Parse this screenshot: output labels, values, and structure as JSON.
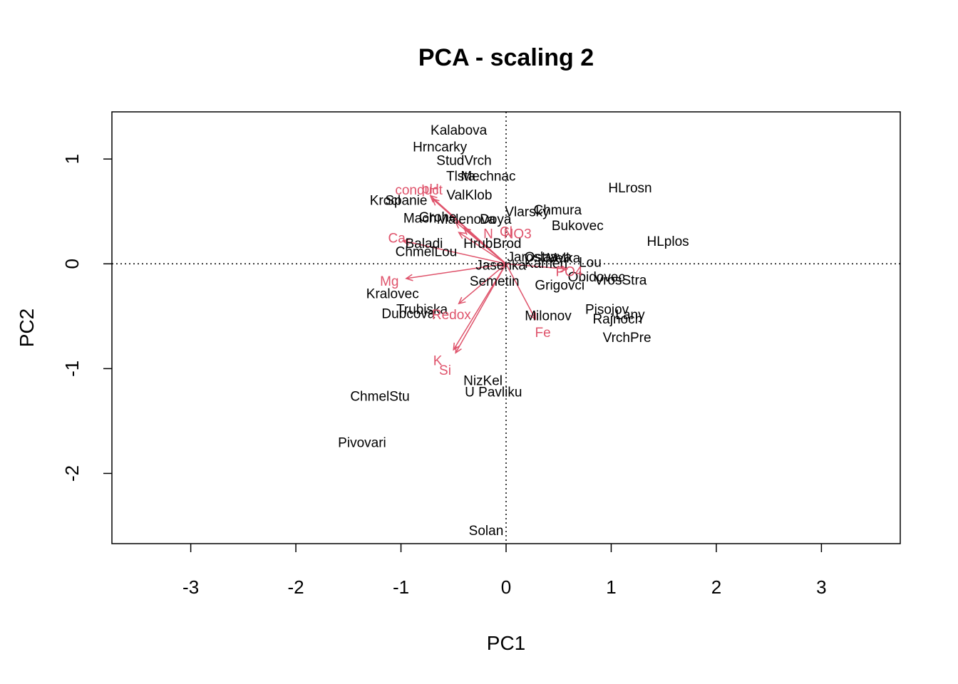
{
  "chart_data": {
    "type": "scatter",
    "title": "PCA - scaling 2",
    "xlabel": "PC1",
    "ylabel": "PC2",
    "xlim": [
      -3.75,
      3.75
    ],
    "ylim": [
      -2.67,
      1.45
    ],
    "x_ticks": [
      -3,
      -2,
      -1,
      0,
      1,
      2,
      3
    ],
    "y_ticks": [
      -2,
      -1,
      0,
      1
    ],
    "zero_lines": "dotted",
    "site_color": "#000000",
    "species_color": "#DF536B",
    "sites": [
      {
        "label": "Kalabova",
        "x": -0.45,
        "y": 1.28
      },
      {
        "label": "Hrncarky",
        "x": -0.63,
        "y": 1.12
      },
      {
        "label": "StudVrch",
        "x": -0.4,
        "y": 0.99
      },
      {
        "label": "Tlsta",
        "x": -0.43,
        "y": 0.84
      },
      {
        "label": "Mechnac",
        "x": -0.17,
        "y": 0.84
      },
      {
        "label": "ValKlob",
        "x": -0.35,
        "y": 0.66
      },
      {
        "label": "Krocl",
        "x": -1.15,
        "y": 0.61
      },
      {
        "label": "Spanie",
        "x": -0.95,
        "y": 0.61
      },
      {
        "label": "Mach",
        "x": -0.82,
        "y": 0.44
      },
      {
        "label": "Grohe",
        "x": -0.65,
        "y": 0.45
      },
      {
        "label": "Malenova",
        "x": -0.38,
        "y": 0.43
      },
      {
        "label": "Doya",
        "x": -0.1,
        "y": 0.43
      },
      {
        "label": "Vlarsky",
        "x": 0.2,
        "y": 0.5
      },
      {
        "label": "Chmura",
        "x": 0.49,
        "y": 0.52
      },
      {
        "label": "Bukovec",
        "x": 0.68,
        "y": 0.37
      },
      {
        "label": "HLrosn",
        "x": 1.18,
        "y": 0.73
      },
      {
        "label": "HLplos",
        "x": 1.54,
        "y": 0.22
      },
      {
        "label": "Baladi",
        "x": -0.78,
        "y": 0.2
      },
      {
        "label": "HrubBrod",
        "x": -0.13,
        "y": 0.2
      },
      {
        "label": "ChmelLou",
        "x": -0.76,
        "y": 0.12
      },
      {
        "label": "Jasenka",
        "x": -0.05,
        "y": -0.01
      },
      {
        "label": "Jaroslav",
        "x": 0.25,
        "y": 0.07
      },
      {
        "label": "Ostrava",
        "x": 0.4,
        "y": 0.07
      },
      {
        "label": "Velka",
        "x": 0.55,
        "y": 0.06
      },
      {
        "label": "Lou",
        "x": 0.8,
        "y": 0.02
      },
      {
        "label": "Kamen",
        "x": 0.38,
        "y": 0.01
      },
      {
        "label": "Semetin",
        "x": -0.11,
        "y": -0.16
      },
      {
        "label": "Obidovec",
        "x": 0.86,
        "y": -0.12
      },
      {
        "label": "VrosStra",
        "x": 1.09,
        "y": -0.15
      },
      {
        "label": "Grigovci",
        "x": 0.51,
        "y": -0.2
      },
      {
        "label": "Kralovec",
        "x": -1.08,
        "y": -0.28
      },
      {
        "label": "Trubiska",
        "x": -0.8,
        "y": -0.43
      },
      {
        "label": "Dubcova",
        "x": -0.93,
        "y": -0.47
      },
      {
        "label": "Milonov",
        "x": 0.4,
        "y": -0.49
      },
      {
        "label": "Pisojov",
        "x": 0.96,
        "y": -0.43
      },
      {
        "label": "Lany",
        "x": 1.18,
        "y": -0.48
      },
      {
        "label": "Rajnoch",
        "x": 1.06,
        "y": -0.52
      },
      {
        "label": "VrchPre",
        "x": 1.15,
        "y": -0.7
      },
      {
        "label": "NizKel",
        "x": -0.22,
        "y": -1.11
      },
      {
        "label": "U Pavliku",
        "x": -0.12,
        "y": -1.22
      },
      {
        "label": "ChmelStu",
        "x": -1.2,
        "y": -1.26
      },
      {
        "label": "Pivovari",
        "x": -1.37,
        "y": -1.7
      },
      {
        "label": "Solan",
        "x": -0.19,
        "y": -2.54
      }
    ],
    "variables": [
      {
        "label": "conduct",
        "x": -0.72,
        "y": 0.65,
        "lx": -0.83,
        "ly": 0.71
      },
      {
        "label": "pH",
        "x": -0.7,
        "y": 0.62,
        "lx": -0.72,
        "ly": 0.72
      },
      {
        "label": "N",
        "x": -0.45,
        "y": 0.3,
        "lx": -0.17,
        "ly": 0.29
      },
      {
        "label": "NO3",
        "x": -0.4,
        "y": 0.34,
        "lx": 0.11,
        "ly": 0.29
      },
      {
        "label": "Cl",
        "x": -0.48,
        "y": 0.4,
        "lx": 0.0,
        "ly": 0.31
      },
      {
        "label": "Ca",
        "x": -0.98,
        "y": 0.22,
        "lx": -1.04,
        "ly": 0.25
      },
      {
        "label": "Mg",
        "x": -0.95,
        "y": -0.14,
        "lx": -1.11,
        "ly": -0.16
      },
      {
        "label": "Redox",
        "x": -0.45,
        "y": -0.38,
        "lx": -0.52,
        "ly": -0.48
      },
      {
        "label": "K",
        "x": -0.5,
        "y": -0.82,
        "lx": -0.65,
        "ly": -0.92
      },
      {
        "label": "Si",
        "x": -0.48,
        "y": -0.85,
        "lx": -0.58,
        "ly": -1.01
      },
      {
        "label": "Fe",
        "x": 0.28,
        "y": -0.53,
        "lx": 0.35,
        "ly": -0.65
      },
      {
        "label": "PO4",
        "x": 0.58,
        "y": -0.05,
        "lx": 0.6,
        "ly": -0.07
      }
    ]
  }
}
